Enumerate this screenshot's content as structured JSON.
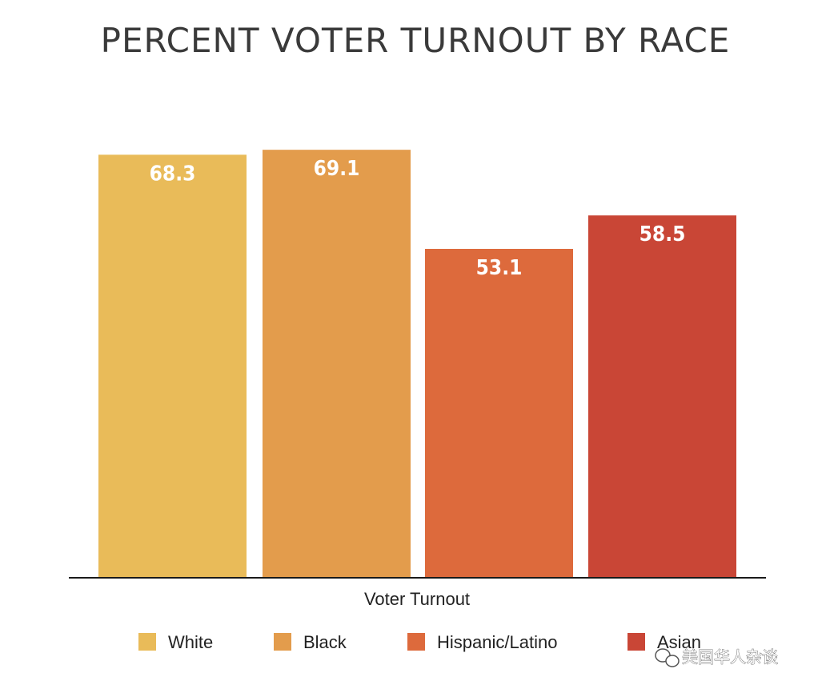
{
  "chart_data": {
    "type": "bar",
    "title": "PERCENT VOTER TURNOUT BY RACE",
    "xlabel": "Voter Turnout",
    "ylabel": "",
    "ylim": [
      0,
      75
    ],
    "grid": false,
    "legend_position": "bottom",
    "categories": [
      "Voter Turnout"
    ],
    "series": [
      {
        "name": "White",
        "value": 68.3,
        "label": "68.3",
        "color": "#E9BB59"
      },
      {
        "name": "Black",
        "value": 69.1,
        "label": "69.1",
        "color": "#E39C4C"
      },
      {
        "name": "Hispanic/Latino",
        "value": 53.1,
        "label": "53.1",
        "color": "#DD6A3C"
      },
      {
        "name": "Asian",
        "value": 58.5,
        "label": "58.5",
        "color": "#C94636"
      }
    ]
  },
  "watermark": {
    "text": "美国华人杂谈"
  }
}
